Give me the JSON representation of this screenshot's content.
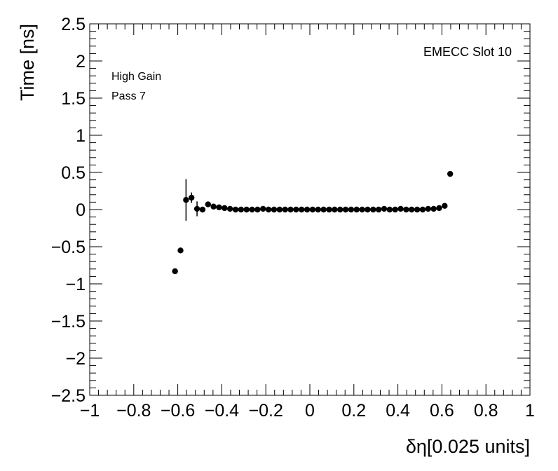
{
  "chart_data": {
    "type": "scatter",
    "xlabel": "δη[0.025 units]",
    "ylabel": "Time [ns]",
    "xlim": [
      -1,
      1
    ],
    "ylim": [
      -2.5,
      2.5
    ],
    "x_ticks": [
      "−1",
      "−0.8",
      "−0.6",
      "−0.4",
      "−0.2",
      "0",
      "0.2",
      "0.4",
      "0.6",
      "0.8",
      "1"
    ],
    "y_ticks": [
      "−2.5",
      "−2",
      "−1.5",
      "−1",
      "−0.5",
      "0",
      "0.5",
      "1",
      "1.5",
      "2",
      "2.5"
    ],
    "grid": false,
    "annotations": {
      "top_right": "EMECC Slot 10",
      "line1": "High Gain",
      "line2": "Pass 7"
    },
    "series": [
      {
        "marker": "filled-circle",
        "color": "#000000",
        "points": [
          {
            "x": -0.6125,
            "y": -0.83,
            "err": 0.0
          },
          {
            "x": -0.5875,
            "y": -0.55,
            "err": 0.0
          },
          {
            "x": -0.5625,
            "y": 0.13,
            "err": 0.28
          },
          {
            "x": -0.5375,
            "y": 0.16,
            "err": 0.07
          },
          {
            "x": -0.5125,
            "y": 0.01,
            "err": 0.1
          },
          {
            "x": -0.4875,
            "y": 0.0,
            "err": 0.0
          },
          {
            "x": -0.4625,
            "y": 0.07,
            "err": 0.0
          },
          {
            "x": -0.4375,
            "y": 0.04,
            "err": 0.0
          },
          {
            "x": -0.4125,
            "y": 0.03,
            "err": 0.0
          },
          {
            "x": -0.3875,
            "y": 0.02,
            "err": 0.0
          },
          {
            "x": -0.3625,
            "y": 0.01,
            "err": 0.0
          },
          {
            "x": -0.3375,
            "y": 0.0,
            "err": 0.0
          },
          {
            "x": -0.3125,
            "y": 0.0,
            "err": 0.0
          },
          {
            "x": -0.2875,
            "y": 0.0,
            "err": 0.0
          },
          {
            "x": -0.2625,
            "y": 0.0,
            "err": 0.0
          },
          {
            "x": -0.2375,
            "y": 0.0,
            "err": 0.0
          },
          {
            "x": -0.2125,
            "y": 0.01,
            "err": 0.0
          },
          {
            "x": -0.1875,
            "y": 0.0,
            "err": 0.0
          },
          {
            "x": -0.1625,
            "y": 0.0,
            "err": 0.0
          },
          {
            "x": -0.1375,
            "y": 0.0,
            "err": 0.0
          },
          {
            "x": -0.1125,
            "y": 0.0,
            "err": 0.0
          },
          {
            "x": -0.0875,
            "y": 0.0,
            "err": 0.0
          },
          {
            "x": -0.0625,
            "y": 0.0,
            "err": 0.0
          },
          {
            "x": -0.0375,
            "y": 0.0,
            "err": 0.0
          },
          {
            "x": -0.0125,
            "y": 0.0,
            "err": 0.0
          },
          {
            "x": 0.0125,
            "y": 0.0,
            "err": 0.0
          },
          {
            "x": 0.0375,
            "y": 0.0,
            "err": 0.0
          },
          {
            "x": 0.0625,
            "y": 0.0,
            "err": 0.0
          },
          {
            "x": 0.0875,
            "y": 0.0,
            "err": 0.0
          },
          {
            "x": 0.1125,
            "y": 0.0,
            "err": 0.0
          },
          {
            "x": 0.1375,
            "y": 0.0,
            "err": 0.0
          },
          {
            "x": 0.1625,
            "y": 0.0,
            "err": 0.0
          },
          {
            "x": 0.1875,
            "y": 0.0,
            "err": 0.0
          },
          {
            "x": 0.2125,
            "y": 0.0,
            "err": 0.0
          },
          {
            "x": 0.2375,
            "y": 0.0,
            "err": 0.0
          },
          {
            "x": 0.2625,
            "y": 0.0,
            "err": 0.0
          },
          {
            "x": 0.2875,
            "y": 0.0,
            "err": 0.0
          },
          {
            "x": 0.3125,
            "y": 0.0,
            "err": 0.0
          },
          {
            "x": 0.3375,
            "y": 0.01,
            "err": 0.0
          },
          {
            "x": 0.3625,
            "y": 0.0,
            "err": 0.0
          },
          {
            "x": 0.3875,
            "y": 0.0,
            "err": 0.0
          },
          {
            "x": 0.4125,
            "y": 0.01,
            "err": 0.0
          },
          {
            "x": 0.4375,
            "y": 0.0,
            "err": 0.0
          },
          {
            "x": 0.4625,
            "y": 0.0,
            "err": 0.0
          },
          {
            "x": 0.4875,
            "y": 0.0,
            "err": 0.0
          },
          {
            "x": 0.5125,
            "y": 0.0,
            "err": 0.0
          },
          {
            "x": 0.5375,
            "y": 0.01,
            "err": 0.0
          },
          {
            "x": 0.5625,
            "y": 0.01,
            "err": 0.0
          },
          {
            "x": 0.5875,
            "y": 0.02,
            "err": 0.0
          },
          {
            "x": 0.6125,
            "y": 0.05,
            "err": 0.0
          },
          {
            "x": 0.6375,
            "y": 0.48,
            "err": 0.0
          }
        ]
      }
    ]
  }
}
